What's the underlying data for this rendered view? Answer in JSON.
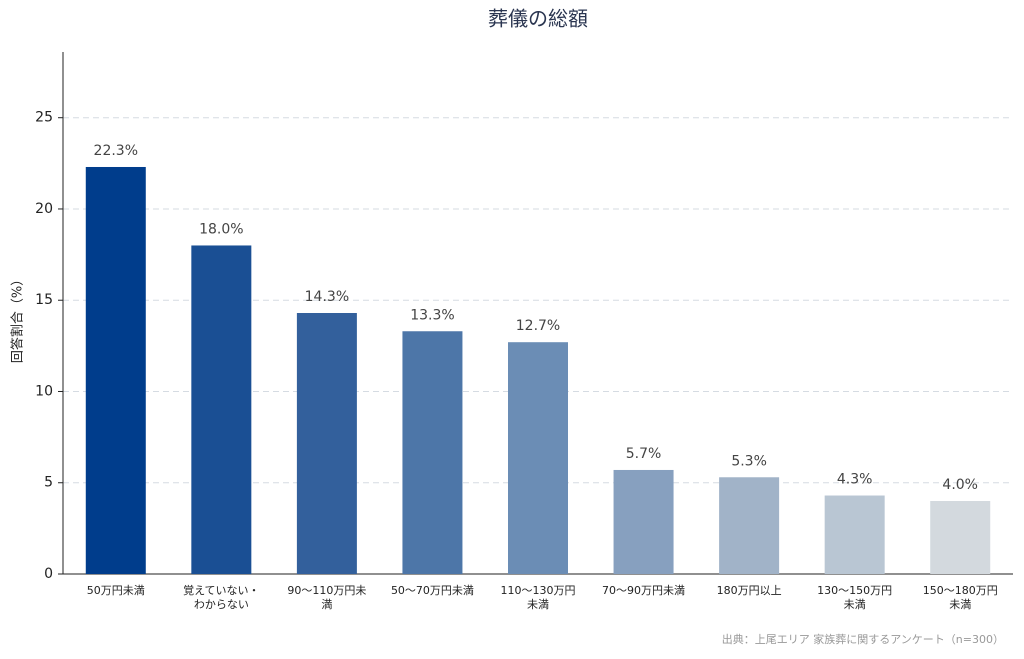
{
  "chart_data": {
    "type": "bar",
    "title": "葬儀の総額",
    "y_label": "回答割合（%）",
    "categories": [
      "50万円未満",
      "覚えていない・わからない",
      "90〜110万円未満",
      "50〜70万円未満",
      "110〜130万円未満",
      "70〜90万円未満",
      "180万円以上",
      "130〜150万円未満",
      "150〜180万円未満"
    ],
    "values": [
      22.3,
      18.0,
      14.3,
      13.3,
      12.7,
      5.7,
      5.3,
      4.3,
      4.0
    ],
    "value_labels": [
      "22.3%",
      "18.0%",
      "14.3%",
      "13.3%",
      "12.7%",
      "5.7%",
      "5.3%",
      "4.3%",
      "4.0%"
    ],
    "colors": [
      "#003d8c",
      "#1a4f94",
      "#33609c",
      "#4d76a8",
      "#6b8db5",
      "#87a0bf",
      "#a1b3c8",
      "#b9c6d3",
      "#d3d9de"
    ],
    "ylim": [
      0,
      28.6
    ],
    "yticks": [
      0,
      5,
      10,
      15,
      20,
      25
    ],
    "grid": true,
    "source": "出典：上尾エリア 家族葬に関するアンケート（n=300）"
  }
}
